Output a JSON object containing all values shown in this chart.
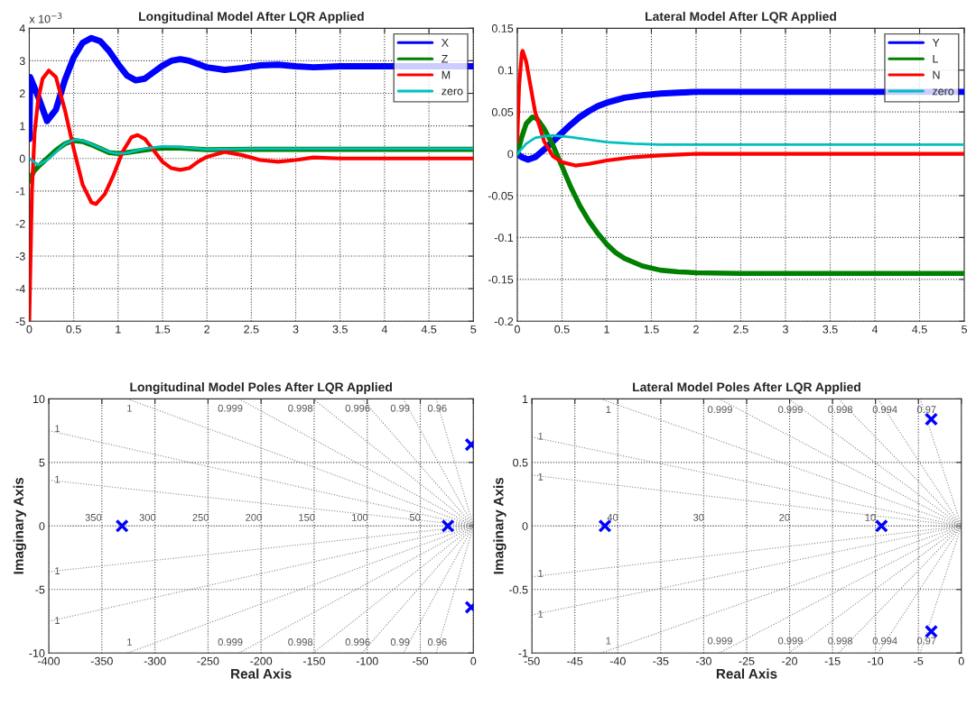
{
  "chart_data": [
    {
      "type": "line",
      "title": "Longitudinal Model After LQR Applied",
      "xlim": [
        0,
        5
      ],
      "ylim": [
        -5,
        4
      ],
      "xticks": [
        0,
        0.5,
        1,
        1.5,
        2,
        2.5,
        3,
        3.5,
        4,
        4.5,
        5
      ],
      "yticks": [
        -5,
        -4,
        -3,
        -2,
        -1,
        0,
        1,
        2,
        3,
        4
      ],
      "grid": true,
      "legend": "top right",
      "line_style": "solid",
      "annotations": [
        "x 10$^{−3}$"
      ],
      "series": [
        {
          "name": "X",
          "color": "#0000ff",
          "x": [
            0,
            0.01,
            0.1,
            0.2,
            0.3,
            0.4,
            0.5,
            0.6,
            0.7,
            0.8,
            0.9,
            1.0,
            1.1,
            1.2,
            1.3,
            1.4,
            1.5,
            1.6,
            1.7,
            1.8,
            1.9,
            2.0,
            2.2,
            2.4,
            2.6,
            2.8,
            3.0,
            3.2,
            3.5,
            4,
            5
          ],
          "values": [
            0.6,
            2.5,
            1.9,
            1.15,
            1.5,
            2.4,
            3.1,
            3.55,
            3.7,
            3.6,
            3.3,
            2.9,
            2.55,
            2.4,
            2.45,
            2.65,
            2.85,
            3.0,
            3.05,
            3.0,
            2.9,
            2.8,
            2.72,
            2.78,
            2.86,
            2.88,
            2.83,
            2.8,
            2.83,
            2.83,
            2.83
          ]
        },
        {
          "name": "Z",
          "color": "#008000",
          "x": [
            0,
            0.05,
            0.1,
            0.2,
            0.3,
            0.4,
            0.5,
            0.6,
            0.7,
            0.8,
            0.9,
            1.0,
            1.1,
            1.2,
            1.4,
            1.5,
            1.7,
            2.0,
            2.5,
            3,
            4,
            5
          ],
          "values": [
            -0.7,
            -0.4,
            -0.25,
            0.0,
            0.25,
            0.45,
            0.55,
            0.52,
            0.42,
            0.3,
            0.18,
            0.15,
            0.18,
            0.22,
            0.3,
            0.32,
            0.32,
            0.27,
            0.28,
            0.28,
            0.28,
            0.28
          ]
        },
        {
          "name": "M",
          "color": "#ff0000",
          "x": [
            0,
            0.03,
            0.06,
            0.1,
            0.15,
            0.22,
            0.3,
            0.4,
            0.5,
            0.6,
            0.7,
            0.75,
            0.85,
            0.95,
            1.05,
            1.15,
            1.22,
            1.3,
            1.4,
            1.5,
            1.6,
            1.7,
            1.8,
            1.9,
            2.0,
            2.2,
            2.4,
            2.6,
            2.8,
            3.0,
            3.2,
            3.5,
            4,
            5
          ],
          "values": [
            -5,
            -1,
            0.8,
            1.8,
            2.45,
            2.7,
            2.5,
            1.5,
            0.3,
            -0.8,
            -1.35,
            -1.4,
            -1.1,
            -0.5,
            0.2,
            0.65,
            0.72,
            0.6,
            0.25,
            -0.1,
            -0.3,
            -0.35,
            -0.3,
            -0.1,
            0.05,
            0.2,
            0.1,
            -0.05,
            -0.1,
            -0.05,
            0.03,
            0,
            0,
            0
          ]
        },
        {
          "name": "zero",
          "color": "#00bfbf",
          "x": [
            0,
            0.05,
            0.1,
            0.2,
            0.3,
            0.4,
            0.5,
            0.55,
            0.65,
            0.8,
            0.9,
            1.0,
            1.1,
            1.3,
            1.5,
            1.7,
            2.0,
            2.5,
            3,
            4,
            5
          ],
          "values": [
            0,
            -0.1,
            -0.2,
            -0.05,
            0.2,
            0.45,
            0.57,
            0.58,
            0.5,
            0.32,
            0.2,
            0.15,
            0.17,
            0.3,
            0.37,
            0.35,
            0.28,
            0.3,
            0.3,
            0.3,
            0.3
          ]
        }
      ]
    },
    {
      "type": "line",
      "title": "Lateral Model After LQR Applied",
      "xlim": [
        0,
        5
      ],
      "ylim": [
        -0.2,
        0.15
      ],
      "xticks": [
        0,
        0.5,
        1,
        1.5,
        2,
        2.5,
        3,
        3.5,
        4,
        4.5,
        5
      ],
      "yticks": [
        -0.2,
        -0.15,
        -0.1,
        -0.05,
        0,
        0.05,
        0.1,
        0.15
      ],
      "grid": true,
      "legend": "top right",
      "line_style": "solid",
      "series": [
        {
          "name": "Y",
          "color": "#0000ff",
          "x": [
            0,
            0.05,
            0.12,
            0.2,
            0.3,
            0.4,
            0.5,
            0.6,
            0.7,
            0.8,
            0.9,
            1.0,
            1.2,
            1.4,
            1.6,
            1.8,
            2,
            2.5,
            3,
            4,
            5
          ],
          "values": [
            0,
            -0.004,
            -0.007,
            -0.004,
            0.005,
            0.015,
            0.025,
            0.035,
            0.044,
            0.051,
            0.057,
            0.061,
            0.067,
            0.07,
            0.072,
            0.073,
            0.074,
            0.074,
            0.074,
            0.074,
            0.074
          ]
        },
        {
          "name": "L",
          "color": "#008000",
          "x": [
            0,
            0.05,
            0.1,
            0.17,
            0.22,
            0.3,
            0.4,
            0.5,
            0.6,
            0.7,
            0.8,
            0.9,
            1.0,
            1.1,
            1.2,
            1.4,
            1.6,
            1.8,
            2.0,
            2.5,
            3,
            4,
            5
          ],
          "values": [
            0,
            0.02,
            0.036,
            0.044,
            0.042,
            0.03,
            0.01,
            -0.015,
            -0.04,
            -0.062,
            -0.08,
            -0.095,
            -0.108,
            -0.118,
            -0.125,
            -0.134,
            -0.139,
            -0.141,
            -0.142,
            -0.143,
            -0.143,
            -0.143,
            -0.143
          ]
        },
        {
          "name": "N",
          "color": "#ff0000",
          "x": [
            0,
            0.02,
            0.05,
            0.06,
            0.1,
            0.15,
            0.2,
            0.3,
            0.4,
            0.5,
            0.65,
            0.8,
            1.0,
            1.3,
            1.6,
            2,
            3,
            5
          ],
          "values": [
            0.015,
            0.08,
            0.12,
            0.123,
            0.11,
            0.08,
            0.05,
            0.015,
            -0.003,
            -0.01,
            -0.014,
            -0.012,
            -0.008,
            -0.004,
            -0.002,
            0,
            0,
            0
          ]
        },
        {
          "name": "zero",
          "color": "#00bfbf",
          "x": [
            0,
            0.1,
            0.2,
            0.3,
            0.4,
            0.6,
            0.8,
            1.0,
            1.3,
            1.6,
            2,
            5
          ],
          "values": [
            0,
            0.012,
            0.019,
            0.021,
            0.022,
            0.02,
            0.017,
            0.014,
            0.012,
            0.011,
            0.011,
            0.011
          ]
        }
      ]
    },
    {
      "type": "scatter",
      "title": "Longitudinal Model Poles After LQR Applied",
      "xlabel": "Real Axis",
      "ylabel": "Imaginary Axis",
      "xlim": [
        -400,
        0
      ],
      "ylim": [
        -10,
        10
      ],
      "xticks": [
        -400,
        -350,
        -300,
        -250,
        -200,
        -150,
        -100,
        -50,
        0
      ],
      "yticks": [
        -10,
        -5,
        0,
        5,
        10
      ],
      "grid": true,
      "series": [
        {
          "type": "line",
          "color": "#888888",
          "line_style": "dotted",
          "x": [
            -326,
            0
          ],
          "values": [
            10,
            0
          ]
        },
        {
          "type": "line",
          "color": "#888888",
          "line_style": "dotted",
          "x": [
            -221,
            0
          ],
          "values": [
            10,
            0
          ]
        },
        {
          "type": "line",
          "color": "#888888",
          "line_style": "dotted",
          "x": [
            -151,
            0
          ],
          "values": [
            10,
            0
          ]
        },
        {
          "type": "line",
          "color": "#888888",
          "line_style": "dotted",
          "x": [
            -105,
            0
          ],
          "values": [
            10,
            0
          ]
        },
        {
          "type": "line",
          "color": "#888888",
          "line_style": "dotted",
          "x": [
            -66,
            0
          ],
          "values": [
            10,
            0
          ]
        },
        {
          "type": "line",
          "color": "#888888",
          "line_style": "dotted",
          "x": [
            -35,
            0
          ],
          "values": [
            10,
            0
          ]
        },
        {
          "type": "line",
          "color": "#888888",
          "line_style": "dotted",
          "x": [
            -400,
            0
          ],
          "values": [
            7.5,
            0
          ]
        },
        {
          "type": "line",
          "color": "#888888",
          "line_style": "dotted",
          "x": [
            -400,
            0
          ],
          "values": [
            3.6,
            0
          ]
        },
        {
          "type": "line",
          "color": "#888888",
          "line_style": "dotted",
          "x": [
            -400,
            0
          ],
          "values": [
            -3.6,
            0
          ]
        },
        {
          "type": "line",
          "color": "#888888",
          "line_style": "dotted",
          "x": [
            -400,
            0
          ],
          "values": [
            -7.5,
            0
          ]
        },
        {
          "type": "line",
          "color": "#888888",
          "line_style": "dotted",
          "x": [
            -326,
            0
          ],
          "values": [
            -10,
            0
          ]
        },
        {
          "type": "line",
          "color": "#888888",
          "line_style": "dotted",
          "x": [
            -221,
            0
          ],
          "values": [
            -10,
            0
          ]
        },
        {
          "type": "line",
          "color": "#888888",
          "line_style": "dotted",
          "x": [
            -151,
            0
          ],
          "values": [
            -10,
            0
          ]
        },
        {
          "type": "line",
          "color": "#888888",
          "line_style": "dotted",
          "x": [
            -105,
            0
          ],
          "values": [
            -10,
            0
          ]
        },
        {
          "type": "line",
          "color": "#888888",
          "line_style": "dotted",
          "x": [
            -66,
            0
          ],
          "values": [
            -10,
            0
          ]
        },
        {
          "type": "line",
          "color": "#888888",
          "line_style": "dotted",
          "x": [
            -35,
            0
          ],
          "values": [
            -10,
            0
          ]
        },
        {
          "color": "#0000ff",
          "marker": "cross",
          "x": [
            -331,
            -24,
            -2,
            -2
          ],
          "values": [
            0,
            0,
            6.4,
            -6.4
          ]
        }
      ],
      "ref_lines": [
        {
          "axis": "y",
          "value": 0,
          "color": "#888888",
          "line_style": "dotted"
        }
      ],
      "annotations": [
        "1",
        "0.999",
        "0.998",
        "0.996",
        "0.99",
        "0.96",
        "1",
        "1",
        "1",
        "1",
        "1",
        "0.999",
        "0.998",
        "0.996",
        "0.99",
        "0.96",
        "350",
        "300",
        "250",
        "200",
        "150",
        "100",
        "50"
      ]
    },
    {
      "type": "scatter",
      "title": "Lateral Model Poles After LQR Applied",
      "xlabel": "Real Axis",
      "ylabel": "Imaginary Axis",
      "xlim": [
        -50,
        0
      ],
      "ylim": [
        -1,
        1
      ],
      "xticks": [
        -50,
        -45,
        -40,
        -35,
        -30,
        -25,
        -20,
        -15,
        -10,
        -5,
        0
      ],
      "yticks": [
        -1,
        -0.5,
        0,
        0.5,
        1
      ],
      "grid": true,
      "series": [
        {
          "type": "line",
          "color": "#888888",
          "line_style": "dotted",
          "x": [
            -42,
            0
          ],
          "values": [
            1,
            0
          ]
        },
        {
          "type": "line",
          "color": "#888888",
          "line_style": "dotted",
          "x": [
            -28.2,
            0
          ],
          "values": [
            1,
            0
          ]
        },
        {
          "type": "line",
          "color": "#888888",
          "line_style": "dotted",
          "x": [
            -20.1,
            0
          ],
          "values": [
            1,
            0
          ]
        },
        {
          "type": "line",
          "color": "#888888",
          "line_style": "dotted",
          "x": [
            -14.3,
            0
          ],
          "values": [
            1,
            0
          ]
        },
        {
          "type": "line",
          "color": "#888888",
          "line_style": "dotted",
          "x": [
            -9.7,
            0
          ],
          "values": [
            1,
            0
          ]
        },
        {
          "type": "line",
          "color": "#888888",
          "line_style": "dotted",
          "x": [
            -4.8,
            0
          ],
          "values": [
            1,
            0
          ]
        },
        {
          "type": "line",
          "color": "#888888",
          "line_style": "dotted",
          "x": [
            -50,
            0
          ],
          "values": [
            0.7,
            0
          ]
        },
        {
          "type": "line",
          "color": "#888888",
          "line_style": "dotted",
          "x": [
            -50,
            0
          ],
          "values": [
            0.4,
            0
          ]
        },
        {
          "type": "line",
          "color": "#888888",
          "line_style": "dotted",
          "x": [
            -50,
            0
          ],
          "values": [
            -0.4,
            0
          ]
        },
        {
          "type": "line",
          "color": "#888888",
          "line_style": "dotted",
          "x": [
            -50,
            0
          ],
          "values": [
            -0.7,
            0
          ]
        },
        {
          "type": "line",
          "color": "#888888",
          "line_style": "dotted",
          "x": [
            -42,
            0
          ],
          "values": [
            -1,
            0
          ]
        },
        {
          "type": "line",
          "color": "#888888",
          "line_style": "dotted",
          "x": [
            -28.2,
            0
          ],
          "values": [
            -1,
            0
          ]
        },
        {
          "type": "line",
          "color": "#888888",
          "line_style": "dotted",
          "x": [
            -20.1,
            0
          ],
          "values": [
            -1,
            0
          ]
        },
        {
          "type": "line",
          "color": "#888888",
          "line_style": "dotted",
          "x": [
            -14.3,
            0
          ],
          "values": [
            -1,
            0
          ]
        },
        {
          "type": "line",
          "color": "#888888",
          "line_style": "dotted",
          "x": [
            -9.7,
            0
          ],
          "values": [
            -1,
            0
          ]
        },
        {
          "type": "line",
          "color": "#888888",
          "line_style": "dotted",
          "x": [
            -4.8,
            0
          ],
          "values": [
            -1,
            0
          ]
        },
        {
          "color": "#0000ff",
          "marker": "cross",
          "x": [
            -41.5,
            -9.3,
            -3.5,
            -3.5
          ],
          "values": [
            0,
            0,
            0.84,
            -0.83
          ]
        }
      ],
      "ref_lines": [
        {
          "axis": "y",
          "value": 0,
          "color": "#888888",
          "line_style": "dotted"
        }
      ],
      "annotations": [
        "1",
        "0.999",
        "0.999",
        "0.998",
        "0.994",
        "0.97",
        "1",
        "1",
        "1",
        "1",
        "1",
        "0.999",
        "0.999",
        "0.998",
        "0.994",
        "0.97",
        "40",
        "30",
        "20",
        "10"
      ]
    }
  ]
}
